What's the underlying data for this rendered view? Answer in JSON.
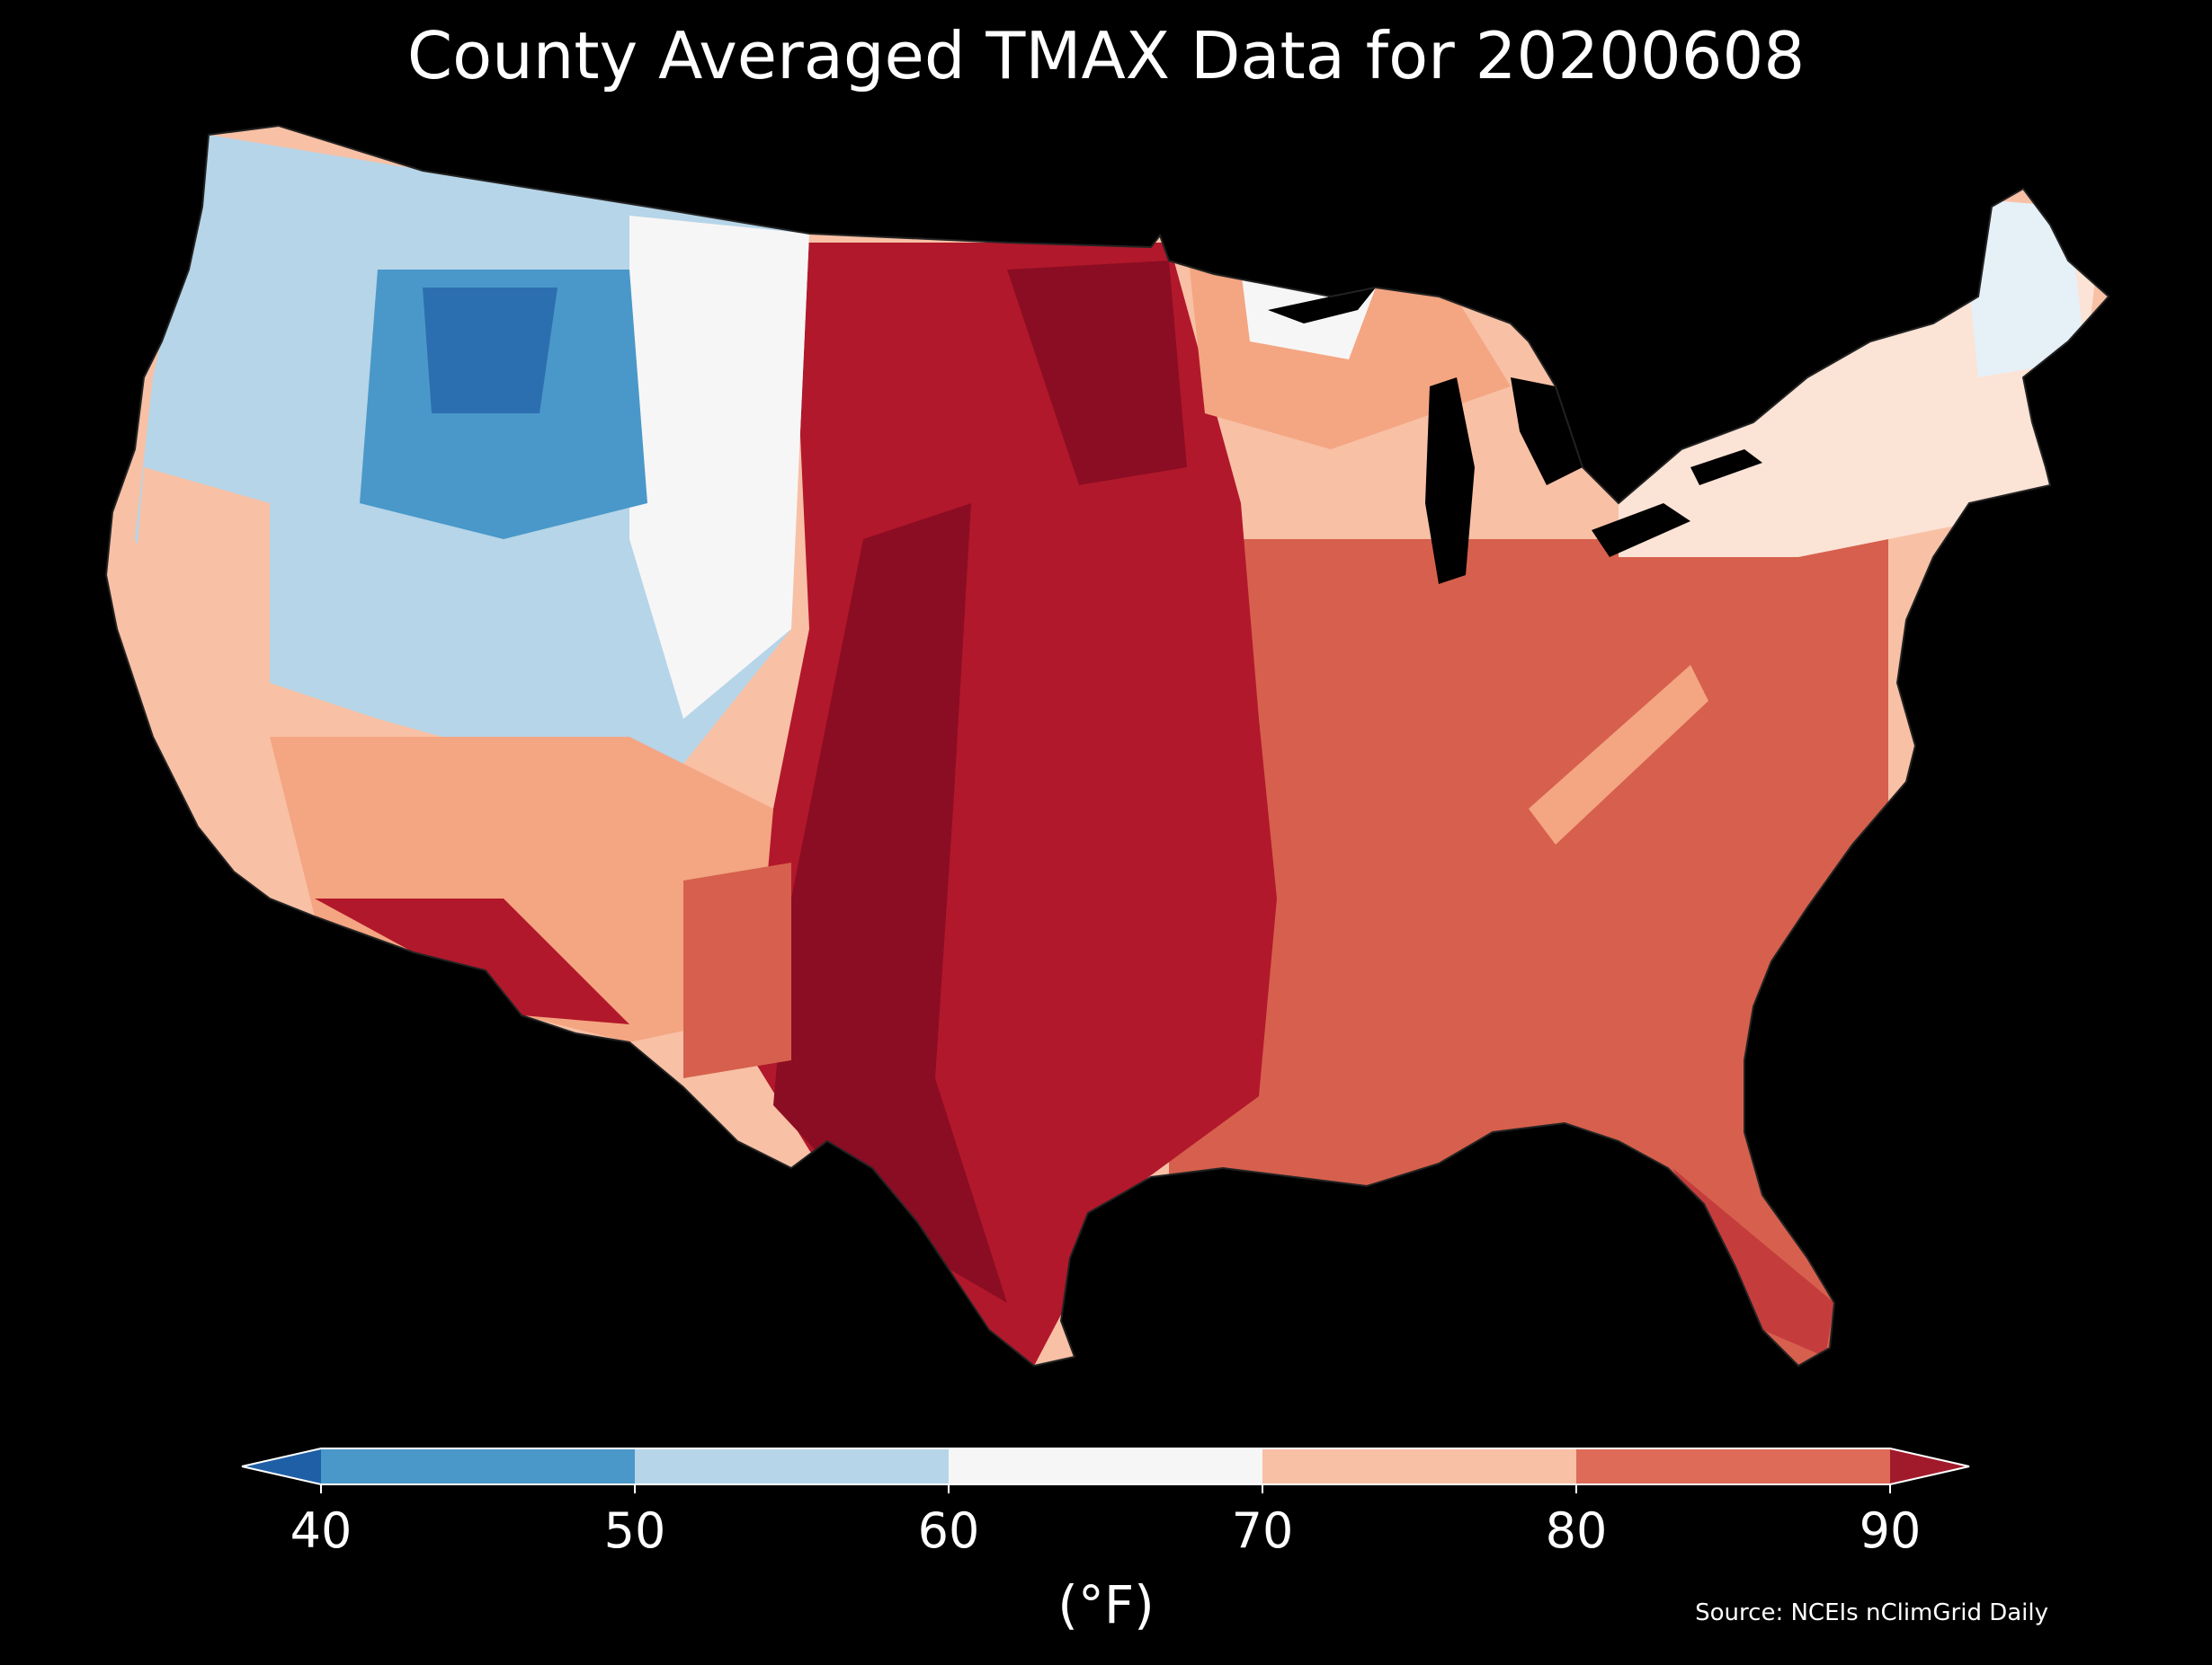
{
  "title": "County Averaged TMAX Data for 20200608",
  "colorbar": {
    "units": "(°F)",
    "ticks": [
      "40",
      "50",
      "60",
      "70",
      "80",
      "90"
    ],
    "bins": [
      {
        "from": 40,
        "to": 50,
        "color": "#4a98c9"
      },
      {
        "from": 50,
        "to": 60,
        "color": "#b6d5e8"
      },
      {
        "from": 60,
        "to": 70,
        "color": "#f7f6f6"
      },
      {
        "from": 70,
        "to": 80,
        "color": "#f8c0a5"
      },
      {
        "from": 80,
        "to": 90,
        "color": "#dd6b58"
      }
    ],
    "under_color": "#1f5fa6",
    "over_color": "#a11a2c",
    "extend": "both"
  },
  "source": "Source: NCEIs nClimGrid Daily",
  "map": {
    "region": "Contiguous United States",
    "background": "#000000",
    "regional_pattern": [
      {
        "area": "Pacific Northwest / Northern Rockies",
        "tmax_approx": 50
      },
      {
        "area": "Great Basin / Northern Plains west",
        "tmax_approx": 60
      },
      {
        "area": "Northeast / New England",
        "tmax_approx": 68
      },
      {
        "area": "Southwest desert",
        "tmax_approx": 88
      },
      {
        "area": "Southern & Central Plains",
        "tmax_approx": 93
      },
      {
        "area": "Southeast",
        "tmax_approx": 85
      }
    ]
  }
}
